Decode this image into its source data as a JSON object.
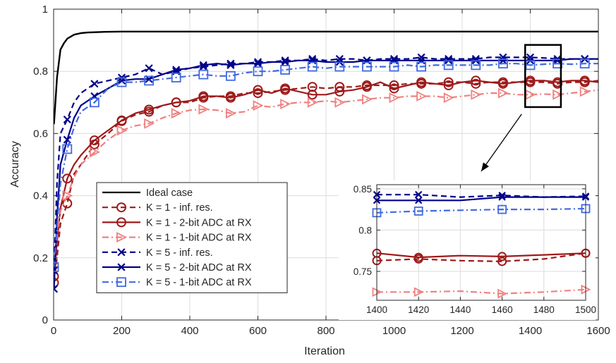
{
  "chart_data": {
    "type": "line",
    "xlabel": "Iteration",
    "ylabel": "Accuracy",
    "xlim": [
      0,
      1600
    ],
    "ylim": [
      0,
      1
    ],
    "xticks": [
      "0",
      "200",
      "400",
      "600",
      "800",
      "1000",
      "1200",
      "1400",
      "1600"
    ],
    "yticks": [
      "0",
      "0.2",
      "0.4",
      "0.6",
      "0.8",
      "1"
    ],
    "grid": true,
    "legend_position": "bottom-left",
    "series": [
      {
        "name": "Ideal case",
        "color": "#000000",
        "dash": "solid",
        "marker": "none",
        "x": [
          1,
          10,
          20,
          30,
          40,
          60,
          80,
          100,
          150,
          200,
          300,
          400,
          600,
          800,
          1000,
          1200,
          1400,
          1600
        ],
        "y": [
          0.63,
          0.78,
          0.87,
          0.89,
          0.905,
          0.918,
          0.923,
          0.925,
          0.927,
          0.928,
          0.928,
          0.928,
          0.928,
          0.928,
          0.928,
          0.928,
          0.928,
          0.928
        ],
        "marker_x": []
      },
      {
        "name": "K = 1 - inf. res.",
        "color": "#9e1a1a",
        "dash": "dashed",
        "marker": "circle",
        "x": [
          1,
          10,
          20,
          40,
          60,
          80,
          120,
          160,
          200,
          240,
          280,
          320,
          360,
          400,
          440,
          480,
          520,
          560,
          600,
          640,
          680,
          720,
          760,
          800,
          840,
          880,
          920,
          960,
          1000,
          1040,
          1080,
          1120,
          1160,
          1200,
          1240,
          1280,
          1320,
          1360,
          1400,
          1440,
          1480,
          1520,
          1560,
          1600
        ],
        "y": [
          0.12,
          0.2,
          0.31,
          0.375,
          0.47,
          0.5,
          0.565,
          0.6,
          0.64,
          0.66,
          0.67,
          0.69,
          0.7,
          0.7,
          0.715,
          0.72,
          0.72,
          0.73,
          0.73,
          0.735,
          0.74,
          0.745,
          0.75,
          0.745,
          0.75,
          0.75,
          0.755,
          0.755,
          0.755,
          0.76,
          0.76,
          0.76,
          0.765,
          0.765,
          0.76,
          0.765,
          0.765,
          0.765,
          0.765,
          0.765,
          0.76,
          0.765,
          0.765,
          0.77
        ],
        "marker_x": [
          1,
          40,
          120,
          200,
          280,
          360,
          440,
          520,
          600,
          680,
          760,
          840,
          920,
          1000,
          1080,
          1160,
          1240,
          1320,
          1400,
          1480,
          1560
        ]
      },
      {
        "name": "K = 1 - 2-bit ADC at RX",
        "color": "#9e1a1a",
        "dash": "solid",
        "marker": "circle",
        "x": [
          1,
          10,
          20,
          40,
          60,
          80,
          120,
          160,
          200,
          240,
          280,
          320,
          360,
          400,
          440,
          480,
          520,
          560,
          600,
          640,
          680,
          720,
          760,
          800,
          840,
          880,
          920,
          960,
          1000,
          1040,
          1080,
          1120,
          1160,
          1200,
          1240,
          1280,
          1320,
          1360,
          1400,
          1440,
          1480,
          1520,
          1560,
          1600
        ],
        "y": [
          0.14,
          0.25,
          0.36,
          0.455,
          0.5,
          0.53,
          0.578,
          0.61,
          0.642,
          0.665,
          0.677,
          0.69,
          0.7,
          0.705,
          0.72,
          0.72,
          0.715,
          0.725,
          0.74,
          0.73,
          0.745,
          0.735,
          0.725,
          0.725,
          0.735,
          0.74,
          0.75,
          0.765,
          0.745,
          0.755,
          0.765,
          0.76,
          0.755,
          0.765,
          0.77,
          0.765,
          0.76,
          0.765,
          0.77,
          0.77,
          0.765,
          0.77,
          0.77,
          0.765
        ],
        "marker_x": [
          1,
          40,
          120,
          200,
          280,
          360,
          440,
          520,
          600,
          680,
          760,
          840,
          920,
          1000,
          1080,
          1160,
          1240,
          1320,
          1400,
          1480,
          1560
        ]
      },
      {
        "name": "K = 1 - 1-bit ADC at RX",
        "color": "#f08080",
        "dash": "dashdot",
        "marker": "triangle-right",
        "x": [
          1,
          10,
          20,
          40,
          60,
          80,
          120,
          160,
          200,
          240,
          280,
          320,
          360,
          400,
          440,
          480,
          520,
          560,
          600,
          640,
          680,
          720,
          760,
          800,
          840,
          880,
          920,
          960,
          1000,
          1040,
          1080,
          1120,
          1160,
          1200,
          1240,
          1280,
          1320,
          1360,
          1400,
          1440,
          1480,
          1520,
          1560,
          1600
        ],
        "y": [
          0.17,
          0.27,
          0.35,
          0.4,
          0.46,
          0.5,
          0.54,
          0.58,
          0.61,
          0.625,
          0.632,
          0.65,
          0.665,
          0.675,
          0.678,
          0.675,
          0.665,
          0.67,
          0.69,
          0.685,
          0.695,
          0.7,
          0.7,
          0.705,
          0.7,
          0.705,
          0.71,
          0.715,
          0.715,
          0.72,
          0.72,
          0.72,
          0.715,
          0.72,
          0.725,
          0.73,
          0.73,
          0.725,
          0.725,
          0.727,
          0.725,
          0.73,
          0.735,
          0.74
        ],
        "marker_x": [
          1,
          40,
          120,
          200,
          280,
          360,
          440,
          520,
          600,
          680,
          760,
          840,
          920,
          1000,
          1080,
          1160,
          1240,
          1320,
          1400,
          1480,
          1560
        ]
      },
      {
        "name": "K = 5 - inf. res.",
        "color": "#00008b",
        "dash": "dashed",
        "marker": "x",
        "x": [
          1,
          10,
          20,
          40,
          60,
          80,
          120,
          160,
          200,
          240,
          280,
          320,
          360,
          400,
          440,
          480,
          520,
          560,
          600,
          640,
          680,
          720,
          760,
          800,
          840,
          880,
          920,
          960,
          1000,
          1040,
          1080,
          1120,
          1160,
          1200,
          1240,
          1280,
          1320,
          1360,
          1400,
          1440,
          1480,
          1520,
          1560,
          1600
        ],
        "y": [
          0.16,
          0.44,
          0.6,
          0.645,
          0.7,
          0.73,
          0.76,
          0.77,
          0.78,
          0.79,
          0.81,
          0.79,
          0.8,
          0.81,
          0.815,
          0.82,
          0.825,
          0.825,
          0.83,
          0.83,
          0.835,
          0.835,
          0.84,
          0.835,
          0.84,
          0.84,
          0.835,
          0.84,
          0.84,
          0.84,
          0.845,
          0.84,
          0.84,
          0.84,
          0.84,
          0.845,
          0.845,
          0.845,
          0.845,
          0.843,
          0.84,
          0.84,
          0.84,
          0.84
        ],
        "marker_x": [
          1,
          40,
          120,
          200,
          280,
          360,
          440,
          520,
          600,
          680,
          760,
          840,
          920,
          1000,
          1080,
          1160,
          1240,
          1320,
          1400,
          1480,
          1560
        ]
      },
      {
        "name": "K = 5 - 2-bit ADC at RX",
        "color": "#00008b",
        "dash": "solid",
        "marker": "x",
        "x": [
          1,
          10,
          20,
          40,
          60,
          80,
          120,
          160,
          200,
          240,
          280,
          320,
          360,
          400,
          440,
          480,
          520,
          560,
          600,
          640,
          680,
          720,
          760,
          800,
          840,
          880,
          920,
          960,
          1000,
          1040,
          1080,
          1120,
          1160,
          1200,
          1240,
          1280,
          1320,
          1360,
          1400,
          1440,
          1480,
          1520,
          1560,
          1600
        ],
        "y": [
          0.1,
          0.33,
          0.5,
          0.58,
          0.65,
          0.69,
          0.72,
          0.745,
          0.77,
          0.775,
          0.775,
          0.79,
          0.805,
          0.81,
          0.82,
          0.825,
          0.82,
          0.825,
          0.825,
          0.83,
          0.83,
          0.835,
          0.835,
          0.83,
          0.83,
          0.83,
          0.835,
          0.835,
          0.835,
          0.835,
          0.835,
          0.835,
          0.835,
          0.835,
          0.835,
          0.835,
          0.835,
          0.835,
          0.835,
          0.835,
          0.835,
          0.84,
          0.84,
          0.84
        ],
        "marker_x": [
          1,
          40,
          120,
          200,
          280,
          360,
          440,
          520,
          600,
          680,
          760,
          840,
          920,
          1000,
          1080,
          1160,
          1240,
          1320,
          1400,
          1480,
          1560
        ]
      },
      {
        "name": "K = 5 - 1-bit ADC at RX",
        "color": "#4169e1",
        "dash": "dashdot",
        "marker": "square",
        "x": [
          1,
          10,
          20,
          40,
          60,
          80,
          120,
          160,
          200,
          240,
          280,
          320,
          360,
          400,
          440,
          480,
          520,
          560,
          600,
          640,
          680,
          720,
          760,
          800,
          840,
          880,
          920,
          960,
          1000,
          1040,
          1080,
          1120,
          1160,
          1200,
          1240,
          1280,
          1320,
          1360,
          1400,
          1440,
          1480,
          1520,
          1560,
          1600
        ],
        "y": [
          0.17,
          0.3,
          0.44,
          0.55,
          0.62,
          0.67,
          0.7,
          0.745,
          0.765,
          0.765,
          0.77,
          0.775,
          0.78,
          0.785,
          0.79,
          0.785,
          0.785,
          0.795,
          0.8,
          0.8,
          0.805,
          0.81,
          0.815,
          0.81,
          0.815,
          0.815,
          0.815,
          0.815,
          0.815,
          0.82,
          0.815,
          0.82,
          0.82,
          0.82,
          0.82,
          0.82,
          0.825,
          0.825,
          0.82,
          0.823,
          0.825,
          0.823,
          0.825,
          0.825
        ],
        "marker_x": [
          1,
          40,
          120,
          200,
          280,
          360,
          440,
          520,
          600,
          680,
          760,
          840,
          920,
          1000,
          1080,
          1160,
          1240,
          1320,
          1400,
          1480,
          1560
        ]
      }
    ],
    "inset": {
      "xlim": [
        1400,
        1500
      ],
      "ylim": [
        0.715,
        0.855
      ],
      "xticks": [
        "1400",
        "1420",
        "1440",
        "1460",
        "1480",
        "1500"
      ],
      "yticks": [
        "0.75",
        "0.8",
        "0.85"
      ],
      "zoom_box": {
        "x": [
          1385,
          1490
        ],
        "y": [
          0.685,
          0.885
        ]
      },
      "series": [
        {
          "x": [
            1400,
            1420,
            1440,
            1460,
            1480,
            1500
          ],
          "y": [
            0.763,
            0.765,
            0.763,
            0.762,
            0.765,
            0.772
          ],
          "marker_x": [
            1400,
            1420,
            1460,
            1500
          ]
        },
        {
          "x": [
            1400,
            1420,
            1440,
            1460,
            1480,
            1500
          ],
          "y": [
            0.772,
            0.767,
            0.769,
            0.768,
            0.77,
            0.772
          ],
          "marker_x": [
            1400,
            1420,
            1460,
            1500
          ]
        },
        {
          "x": [
            1400,
            1420,
            1440,
            1460,
            1480,
            1500
          ],
          "y": [
            0.725,
            0.725,
            0.726,
            0.723,
            0.725,
            0.728
          ],
          "marker_x": [
            1400,
            1420,
            1460,
            1500
          ]
        },
        {
          "x": [
            1400,
            1420,
            1440,
            1460,
            1480,
            1500
          ],
          "y": [
            0.843,
            0.843,
            0.84,
            0.842,
            0.84,
            0.841
          ],
          "marker_x": [
            1400,
            1420,
            1460,
            1500
          ]
        },
        {
          "x": [
            1400,
            1420,
            1440,
            1460,
            1480,
            1500
          ],
          "y": [
            0.836,
            0.836,
            0.836,
            0.84,
            0.84,
            0.84
          ],
          "marker_x": [
            1400,
            1420,
            1460,
            1500
          ]
        },
        {
          "x": [
            1400,
            1420,
            1440,
            1460,
            1480,
            1500
          ],
          "y": [
            0.821,
            0.823,
            0.824,
            0.825,
            0.825,
            0.826
          ],
          "marker_x": [
            1400,
            1420,
            1460,
            1500
          ]
        }
      ]
    }
  }
}
